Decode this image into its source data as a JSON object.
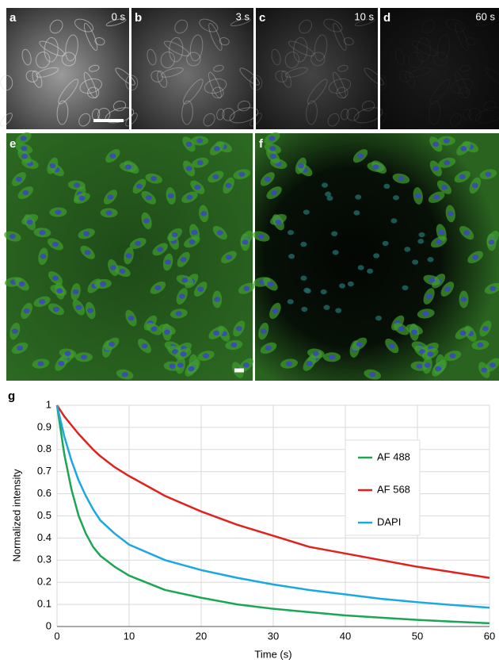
{
  "panels": [
    {
      "label": "a",
      "time": "0 s"
    },
    {
      "label": "b",
      "time": "3 s"
    },
    {
      "label": "c",
      "time": "10 s"
    },
    {
      "label": "d",
      "time": "60 s"
    },
    {
      "label": "e"
    },
    {
      "label": "f"
    },
    {
      "label": "g"
    }
  ],
  "chart_data": {
    "type": "line",
    "xlabel": "Time (s)",
    "ylabel": "Normalized intensity",
    "x": [
      0,
      1,
      2,
      3,
      4,
      5,
      6,
      8,
      10,
      15,
      20,
      25,
      30,
      35,
      40,
      45,
      50,
      55,
      60
    ],
    "series": [
      {
        "name": "AF 488",
        "color": "#1aa653",
        "values": [
          1,
          0.78,
          0.62,
          0.5,
          0.42,
          0.36,
          0.32,
          0.27,
          0.23,
          0.165,
          0.13,
          0.1,
          0.08,
          0.065,
          0.05,
          0.04,
          0.03,
          0.022,
          0.015
        ]
      },
      {
        "name": "AF 568",
        "color": "#e3211c",
        "values": [
          1,
          0.95,
          0.91,
          0.87,
          0.835,
          0.8,
          0.77,
          0.72,
          0.68,
          0.59,
          0.52,
          0.46,
          0.41,
          0.36,
          0.33,
          0.3,
          0.27,
          0.245,
          0.22
        ]
      },
      {
        "name": "DAPI",
        "color": "#1ba7e0",
        "values": [
          1,
          0.86,
          0.75,
          0.66,
          0.59,
          0.53,
          0.48,
          0.42,
          0.37,
          0.3,
          0.255,
          0.22,
          0.19,
          0.165,
          0.145,
          0.125,
          0.11,
          0.097,
          0.085
        ]
      }
    ],
    "xlim": [
      0,
      60
    ],
    "ylim": [
      0,
      1
    ],
    "xticks": [
      0,
      10,
      20,
      30,
      40,
      50,
      60
    ],
    "yticks": [
      0,
      0.1,
      0.2,
      0.3,
      0.4,
      0.5,
      0.6,
      0.7,
      0.8,
      0.9,
      1
    ],
    "grid": true,
    "legend": "right"
  }
}
